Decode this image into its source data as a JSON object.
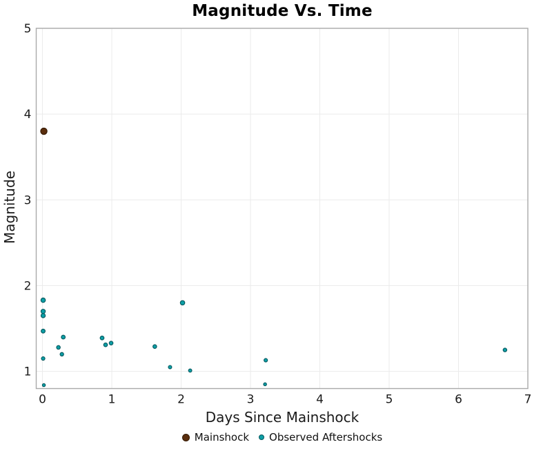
{
  "title": "Magnitude Vs. Time",
  "x_axis": {
    "label": "Days Since Mainshock"
  },
  "y_axis": {
    "label": "Magnitude"
  },
  "legend": {
    "items": [
      {
        "label": "Mainshock",
        "color": "#5A2E0D",
        "edge": "#331904"
      },
      {
        "label": "Observed Aftershocks",
        "color": "#0D9FA6",
        "edge": "#06565C"
      }
    ]
  },
  "colors": {
    "grid": "#EBEBEB",
    "panel_border": "#A9A9A9",
    "tick_text": "#1a1a1a"
  },
  "chart_data": {
    "type": "scatter",
    "title": "Magnitude Vs. Time",
    "xlabel": "Days Since Mainshock",
    "ylabel": "Magnitude",
    "xlim": [
      -0.09,
      7.0
    ],
    "ylim": [
      0.8,
      5.0
    ],
    "x_ticks": [
      0,
      1,
      2,
      3,
      4,
      5,
      6,
      7
    ],
    "y_ticks": [
      1,
      2,
      3,
      4,
      5
    ],
    "grid": true,
    "legend_position": "bottom",
    "marker_size_scales_with_magnitude": true,
    "series": [
      {
        "name": "Mainshock",
        "fill": "#5A2E0D",
        "edge": "#331904",
        "points": [
          {
            "x": 0.02,
            "y": 3.8
          }
        ]
      },
      {
        "name": "Observed Aftershocks",
        "fill": "#0D9FA6",
        "edge": "#06565C",
        "points": [
          {
            "x": 0.01,
            "y": 1.83
          },
          {
            "x": 0.01,
            "y": 1.7
          },
          {
            "x": 0.01,
            "y": 1.65
          },
          {
            "x": 0.01,
            "y": 1.47
          },
          {
            "x": 0.01,
            "y": 1.15
          },
          {
            "x": 0.02,
            "y": 0.84
          },
          {
            "x": 0.23,
            "y": 1.28
          },
          {
            "x": 0.28,
            "y": 1.2
          },
          {
            "x": 0.3,
            "y": 1.4
          },
          {
            "x": 0.86,
            "y": 1.39
          },
          {
            "x": 0.91,
            "y": 1.31
          },
          {
            "x": 0.99,
            "y": 1.33
          },
          {
            "x": 1.62,
            "y": 1.29
          },
          {
            "x": 1.84,
            "y": 1.05
          },
          {
            "x": 2.02,
            "y": 1.8
          },
          {
            "x": 2.13,
            "y": 1.01
          },
          {
            "x": 3.21,
            "y": 0.85
          },
          {
            "x": 3.22,
            "y": 1.13
          },
          {
            "x": 6.67,
            "y": 1.25
          }
        ]
      }
    ]
  }
}
